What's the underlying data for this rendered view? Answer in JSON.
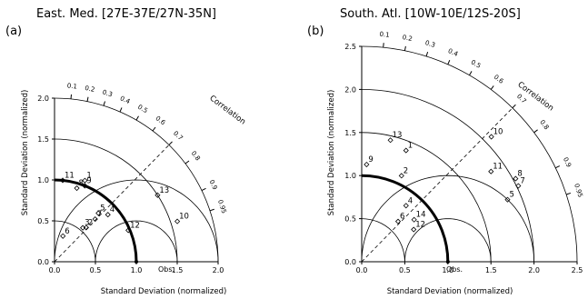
{
  "chart_data": [
    {
      "type": "scatter",
      "subtype": "taylor-diagram",
      "panel_label": "(a)",
      "title": "East. Med. [27E-37E/27N-35N]",
      "xlabel": "Standard Deviation (normalized)",
      "ylabel": "Standard Deviation (normalized)",
      "arc_label": "Correlation",
      "max_std": 2.0,
      "ticks": [
        "0.0",
        "0.5",
        "1.0",
        "1.5",
        "2.0"
      ],
      "correlation_ticks": [
        "0.1",
        "0.2",
        "0.3",
        "0.4",
        "0.5",
        "0.6",
        "0.7",
        "0.8",
        "0.9",
        "0.95"
      ],
      "ref_label": "Obs.",
      "points": [
        {
          "label": "1",
          "std": 1.06,
          "corr": 0.35
        },
        {
          "label": "2",
          "std": 0.57,
          "corr": 0.68
        },
        {
          "label": "3",
          "std": 0.54,
          "corr": 0.64
        },
        {
          "label": "4",
          "std": 0.87,
          "corr": 0.75
        },
        {
          "label": "5",
          "std": 0.8,
          "corr": 0.67
        },
        {
          "label": "6",
          "std": 0.33,
          "corr": 0.31
        },
        {
          "label": "7",
          "std": 0.72,
          "corr": 0.69
        },
        {
          "label": "8",
          "std": 0.94,
          "corr": 0.29
        },
        {
          "label": "9",
          "std": 1.0,
          "corr": 0.37
        },
        {
          "label": "10",
          "std": 1.58,
          "corr": 0.95
        },
        {
          "label": "11",
          "std": 1.0,
          "corr": 0.1
        },
        {
          "label": "12",
          "std": 0.98,
          "corr": 0.92
        },
        {
          "label": "13",
          "std": 1.5,
          "corr": 0.84
        }
      ]
    },
    {
      "type": "scatter",
      "subtype": "taylor-diagram",
      "panel_label": "(b)",
      "title": "South. Atl. [10W-10E/12S-20S]",
      "xlabel": "Standard Deviation (normalized)",
      "ylabel": "Standard Deviation (normalized)",
      "arc_label": "Correlation",
      "max_std": 2.5,
      "ticks": [
        "0.0",
        "0.5",
        "1.0",
        "1.5",
        "2.0",
        "2.5"
      ],
      "correlation_ticks": [
        "0.1",
        "0.2",
        "0.3",
        "0.4",
        "0.5",
        "0.6",
        "0.7",
        "0.8",
        "0.9",
        "0.95"
      ],
      "ref_label": "Obs.",
      "points": [
        {
          "label": "1",
          "std": 1.39,
          "corr": 0.37
        },
        {
          "label": "2",
          "std": 1.1,
          "corr": 0.42
        },
        {
          "label": "4",
          "std": 0.83,
          "corr": 0.62
        },
        {
          "label": "5",
          "std": 1.84,
          "corr": 0.92
        },
        {
          "label": "6",
          "std": 0.63,
          "corr": 0.67
        },
        {
          "label": "7",
          "std": 2.02,
          "corr": 0.9
        },
        {
          "label": "8",
          "std": 2.03,
          "corr": 0.88
        },
        {
          "label": "9",
          "std": 1.13,
          "corr": 0.05
        },
        {
          "label": "10",
          "std": 2.09,
          "corr": 0.72
        },
        {
          "label": "11",
          "std": 1.83,
          "corr": 0.82
        },
        {
          "label": "12",
          "std": 0.71,
          "corr": 0.85
        },
        {
          "label": "13",
          "std": 1.45,
          "corr": 0.23
        },
        {
          "label": "14",
          "std": 0.78,
          "corr": 0.78
        }
      ]
    }
  ]
}
